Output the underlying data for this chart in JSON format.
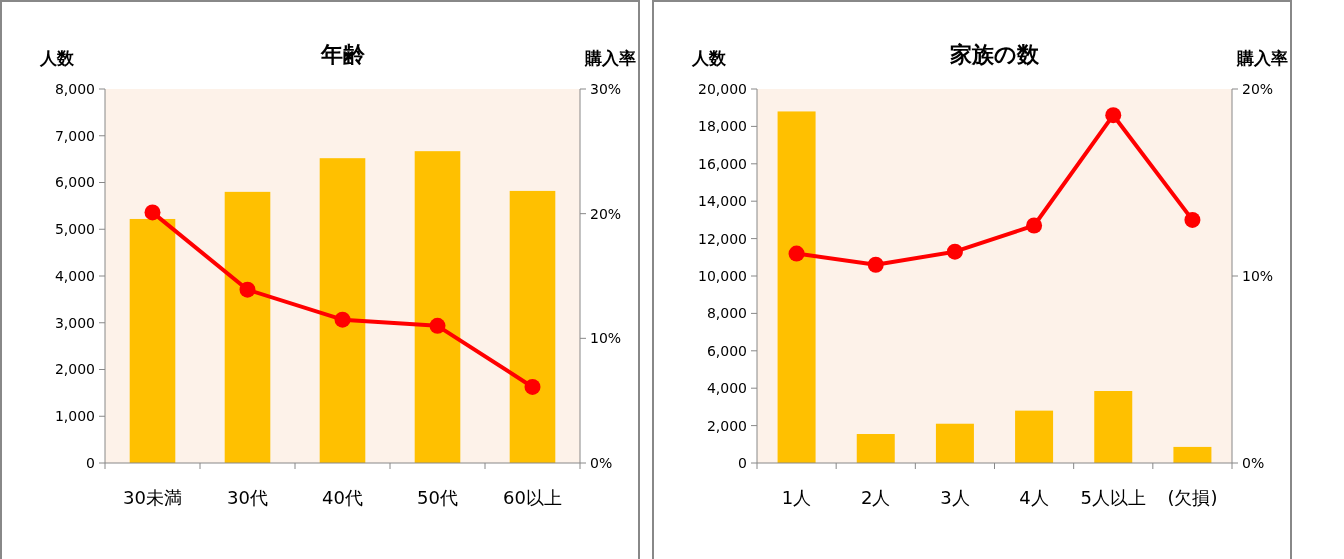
{
  "chart_data": [
    {
      "type": "bar",
      "title": "年齢",
      "ylabel": "人数",
      "y2label": "購入率",
      "categories": [
        "30未満",
        "30代",
        "40代",
        "50代",
        "60以上"
      ],
      "series": [
        {
          "color": "#ffc000",
          "values": [
            5220,
            5800,
            6520,
            6670,
            5820
          ]
        },
        {
          "type": "line",
          "axis": "y2",
          "color": "#ff0000",
          "values": [
            20.1,
            13.9,
            11.5,
            11.0,
            6.1
          ]
        }
      ],
      "ylim": [
        0,
        8000
      ],
      "yticks": [
        0,
        {
          "value": 1000,
          "label": "1,000"
        },
        {
          "value": 2000,
          "label": "2,000"
        },
        {
          "value": 3000,
          "label": "3,000"
        },
        {
          "value": 4000,
          "label": "4,000"
        },
        {
          "value": 5000,
          "label": "5,000"
        },
        {
          "value": 6000,
          "label": "6,000"
        },
        {
          "value": 7000,
          "label": "7,000"
        },
        {
          "value": 8000,
          "label": "8,000"
        }
      ],
      "y2lim": [
        0,
        30
      ],
      "y2ticks": [
        {
          "value": 0,
          "label": "0%"
        },
        {
          "value": 10,
          "label": "10%"
        },
        {
          "value": 20,
          "label": "20%"
        },
        {
          "value": 30,
          "label": "30%"
        }
      ],
      "marker": "circle",
      "line_style": "solid",
      "grid": false
    },
    {
      "type": "bar",
      "title": "家族の数",
      "ylabel": "人数",
      "y2label": "購入率",
      "categories": [
        "1人",
        "2人",
        "3人",
        "4人",
        "5人以上",
        "(欠損)"
      ],
      "series": [
        {
          "color": "#ffc000",
          "values": [
            18800,
            1550,
            2100,
            2800,
            3850,
            860
          ]
        },
        {
          "type": "line",
          "axis": "y2",
          "color": "#ff0000",
          "values": [
            11.2,
            10.6,
            11.3,
            12.7,
            18.6,
            13.0
          ]
        }
      ],
      "ylim": [
        0,
        20000
      ],
      "yticks": [
        0,
        {
          "value": 2000,
          "label": "2,000"
        },
        {
          "value": 4000,
          "label": "4,000"
        },
        {
          "value": 6000,
          "label": "6,000"
        },
        {
          "value": 8000,
          "label": "8,000"
        },
        {
          "value": 10000,
          "label": "10,000"
        },
        {
          "value": 12000,
          "label": "12,000"
        },
        {
          "value": 14000,
          "label": "14,000"
        },
        {
          "value": 16000,
          "label": "16,000"
        },
        {
          "value": 18000,
          "label": "18,000"
        },
        {
          "value": 20000,
          "label": "20,000"
        }
      ],
      "y2lim": [
        0,
        20
      ],
      "y2ticks": [
        {
          "value": 0,
          "label": "0%"
        },
        {
          "value": 10,
          "label": "10%"
        },
        {
          "value": 20,
          "label": "20%"
        }
      ],
      "marker": "circle",
      "line_style": "solid",
      "grid": false
    }
  ]
}
